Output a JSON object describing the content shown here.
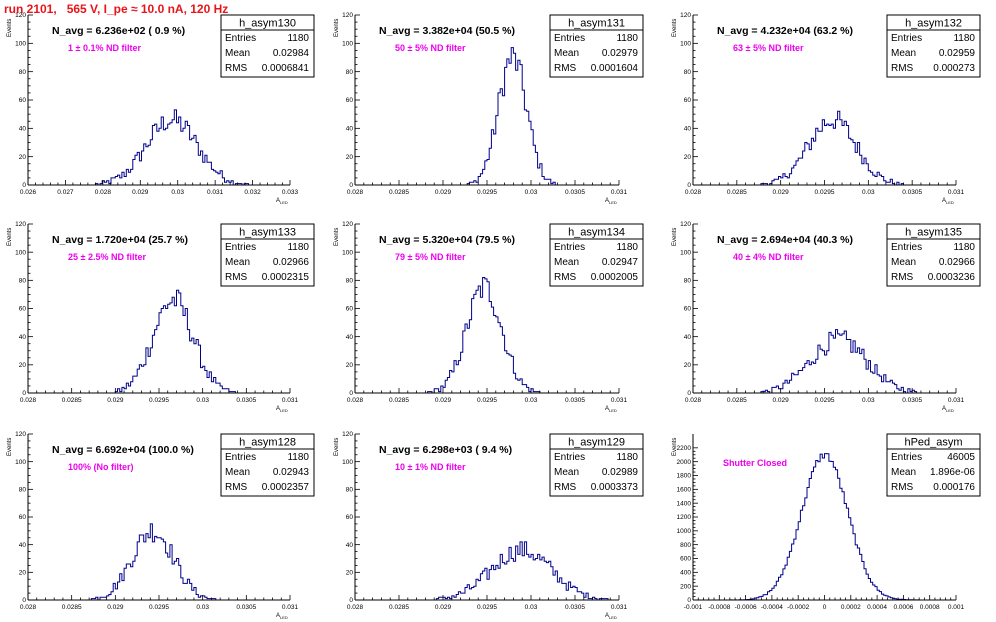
{
  "title": "run 2101,   565 V, I_pe ≈ 10.0 nA, 120 Hz",
  "colors": {
    "title": "#e8141a",
    "histogram": "#00008b",
    "annotation": "#ee00ee"
  },
  "chart_data": [
    {
      "type": "bar",
      "name": "h_asym130",
      "navg": "N_avg = 6.236e+02 ( 0.9 %)",
      "filter": "1 ± 0.1% ND filter",
      "stats": [
        [
          "Entries",
          "1180"
        ],
        [
          "Mean",
          "0.02984"
        ],
        [
          "RMS",
          "0.0006841"
        ]
      ],
      "xlabel": "A_LED",
      "ylabel": "Events",
      "xlim": [
        0.026,
        0.033
      ],
      "ylim": [
        0,
        120
      ],
      "xticks": [
        0.026,
        0.027,
        0.028,
        0.029,
        0.03,
        0.031,
        0.032,
        0.033
      ],
      "xtick_labels": [
        "0.026",
        "0.027",
        "0.028",
        "0.029",
        "0.03",
        "0.031",
        "0.032",
        "0.033"
      ],
      "yticks": [
        0,
        20,
        40,
        60,
        80,
        100,
        120
      ],
      "peaks": [
        {
          "mu": 0.02984,
          "sigma": 0.00068,
          "amp": 46
        }
      ]
    },
    {
      "type": "bar",
      "name": "h_asym131",
      "navg": "N_avg = 3.382e+04 (50.5 %)",
      "filter": "50 ± 5% ND filter",
      "stats": [
        [
          "Entries",
          "1180"
        ],
        [
          "Mean",
          "0.02979"
        ],
        [
          "RMS",
          "0.0001604"
        ]
      ],
      "xlabel": "A_LED",
      "ylabel": "Events",
      "xlim": [
        0.028,
        0.031
      ],
      "ylim": [
        0,
        120
      ],
      "xticks": [
        0.028,
        0.0285,
        0.029,
        0.0295,
        0.03,
        0.0305,
        0.031
      ],
      "xtick_labels": [
        "0.028",
        "0.0285",
        "0.029",
        "0.0295",
        "0.03",
        "0.0305",
        "0.031"
      ],
      "yticks": [
        0,
        20,
        40,
        60,
        80,
        100,
        120
      ],
      "peaks": [
        {
          "mu": 0.02979,
          "sigma": 0.00016,
          "amp": 90
        }
      ]
    },
    {
      "type": "bar",
      "name": "h_asym132",
      "navg": "N_avg = 4.232e+04 (63.2 %)",
      "filter": "63 ± 5% ND filter",
      "stats": [
        [
          "Entries",
          "1180"
        ],
        [
          "Mean",
          "0.02959"
        ],
        [
          "RMS",
          "0.000273"
        ]
      ],
      "xlabel": "A_LED",
      "ylabel": "Events",
      "xlim": [
        0.028,
        0.031
      ],
      "ylim": [
        0,
        120
      ],
      "xticks": [
        0.028,
        0.0285,
        0.029,
        0.0295,
        0.03,
        0.0305,
        0.031
      ],
      "xtick_labels": [
        "0.028",
        "0.0285",
        "0.029",
        "0.0295",
        "0.03",
        "0.0305",
        "0.031"
      ],
      "yticks": [
        0,
        20,
        40,
        60,
        80,
        100,
        120
      ],
      "peaks": [
        {
          "mu": 0.02959,
          "sigma": 0.00027,
          "amp": 46
        }
      ]
    },
    {
      "type": "bar",
      "name": "h_asym133",
      "navg": "N_avg = 1.720e+04 (25.7 %)",
      "filter": "25 ± 2.5% ND filter",
      "stats": [
        [
          "Entries",
          "1180"
        ],
        [
          "Mean",
          "0.02966"
        ],
        [
          "RMS",
          "0.0002315"
        ]
      ],
      "xlabel": "A_LED",
      "ylabel": "Events",
      "xlim": [
        0.028,
        0.031
      ],
      "ylim": [
        0,
        120
      ],
      "xticks": [
        0.028,
        0.0285,
        0.029,
        0.0295,
        0.03,
        0.0305,
        0.031
      ],
      "xtick_labels": [
        "0.028",
        "0.0285",
        "0.029",
        "0.0295",
        "0.03",
        "0.0305",
        "0.031"
      ],
      "yticks": [
        0,
        20,
        40,
        60,
        80,
        100,
        120
      ],
      "peaks": [
        {
          "mu": 0.02966,
          "sigma": 0.00023,
          "amp": 66
        }
      ]
    },
    {
      "type": "bar",
      "name": "h_asym134",
      "navg": "N_avg = 5.320e+04 (79.5 %)",
      "filter": "79 ± 5% ND filter",
      "stats": [
        [
          "Entries",
          "1180"
        ],
        [
          "Mean",
          "0.02947"
        ],
        [
          "RMS",
          "0.0002005"
        ]
      ],
      "xlabel": "A_LED",
      "ylabel": "Events",
      "xlim": [
        0.028,
        0.031
      ],
      "ylim": [
        0,
        120
      ],
      "xticks": [
        0.028,
        0.0285,
        0.029,
        0.0295,
        0.03,
        0.0305,
        0.031
      ],
      "xtick_labels": [
        "0.028",
        "0.0285",
        "0.029",
        "0.0295",
        "0.03",
        "0.0305",
        "0.031"
      ],
      "yticks": [
        0,
        20,
        40,
        60,
        80,
        100,
        120
      ],
      "peaks": [
        {
          "mu": 0.02947,
          "sigma": 0.0002,
          "amp": 75
        }
      ]
    },
    {
      "type": "bar",
      "name": "h_asym135",
      "navg": "N_avg = 2.694e+04 (40.3 %)",
      "filter": "40 ± 4% ND filter",
      "stats": [
        [
          "Entries",
          "1180"
        ],
        [
          "Mean",
          "0.02966"
        ],
        [
          "RMS",
          "0.0003236"
        ]
      ],
      "xlabel": "A_LED",
      "ylabel": "Events",
      "xlim": [
        0.028,
        0.031
      ],
      "ylim": [
        0,
        120
      ],
      "xticks": [
        0.028,
        0.0285,
        0.029,
        0.0295,
        0.03,
        0.0305,
        0.031
      ],
      "xtick_labels": [
        "0.028",
        "0.0285",
        "0.029",
        "0.0295",
        "0.03",
        "0.0305",
        "0.031"
      ],
      "yticks": [
        0,
        20,
        40,
        60,
        80,
        100,
        120
      ],
      "peaks": [
        {
          "mu": 0.02966,
          "sigma": 0.00032,
          "amp": 38
        }
      ]
    },
    {
      "type": "bar",
      "name": "h_asym128",
      "navg": "N_avg = 6.692e+04 (100.0 %)",
      "filter": "100% (No filter)",
      "stats": [
        [
          "Entries",
          "1180"
        ],
        [
          "Mean",
          "0.02943"
        ],
        [
          "RMS",
          "0.0002357"
        ]
      ],
      "xlabel": "A_LED",
      "ylabel": "Events",
      "xlim": [
        0.028,
        0.031
      ],
      "ylim": [
        0,
        120
      ],
      "xticks": [
        0.028,
        0.0285,
        0.029,
        0.0295,
        0.03,
        0.0305,
        0.031
      ],
      "xtick_labels": [
        "0.028",
        "0.0285",
        "0.029",
        "0.0295",
        "0.03",
        "0.0305",
        "0.031"
      ],
      "yticks": [
        0,
        20,
        40,
        60,
        80,
        100,
        120
      ],
      "peaks": [
        {
          "mu": 0.02943,
          "sigma": 0.00024,
          "amp": 50
        }
      ]
    },
    {
      "type": "bar",
      "name": "h_asym129",
      "navg": "N_avg = 6.298e+03 ( 9.4 %)",
      "filter": "10 ± 1% ND filter",
      "stats": [
        [
          "Entries",
          "1180"
        ],
        [
          "Mean",
          "0.02989"
        ],
        [
          "RMS",
          "0.0003373"
        ]
      ],
      "xlabel": "A_LED",
      "ylabel": "Events",
      "xlim": [
        0.028,
        0.031
      ],
      "ylim": [
        0,
        120
      ],
      "xticks": [
        0.028,
        0.0285,
        0.029,
        0.0295,
        0.03,
        0.0305,
        0.031
      ],
      "xtick_labels": [
        "0.028",
        "0.0285",
        "0.029",
        "0.0295",
        "0.03",
        "0.0305",
        "0.031"
      ],
      "yticks": [
        0,
        20,
        40,
        60,
        80,
        100,
        120
      ],
      "peaks": [
        {
          "mu": 0.02989,
          "sigma": 0.00034,
          "amp": 36
        }
      ]
    },
    {
      "type": "bar",
      "name": "hPed_asym",
      "navg": "",
      "filter": "Shutter Closed",
      "stats": [
        [
          "Entries",
          "46005"
        ],
        [
          "Mean",
          "1.896e-06"
        ],
        [
          "RMS",
          "0.000176"
        ]
      ],
      "xlabel": "",
      "ylabel": "Events",
      "xlim": [
        -0.001,
        0.001
      ],
      "ylim": [
        0,
        2400
      ],
      "xticks": [
        -0.001,
        -0.0008,
        -0.0006,
        -0.0004,
        -0.0002,
        0,
        0.0002,
        0.0004,
        0.0006,
        0.0008,
        0.001
      ],
      "xtick_labels": [
        "-0.001",
        "-0.0008",
        "-0.0006",
        "-0.0004",
        "-0.0002",
        "0",
        "0.0002",
        "0.0004",
        "0.0006",
        "0.0008",
        "0.001"
      ],
      "yticks": [
        0,
        200,
        400,
        600,
        800,
        1000,
        1200,
        1400,
        1600,
        1800,
        2000,
        2200
      ],
      "peaks": [
        {
          "mu": 1.9e-06,
          "sigma": 0.000176,
          "amp": 2100
        }
      ]
    }
  ]
}
